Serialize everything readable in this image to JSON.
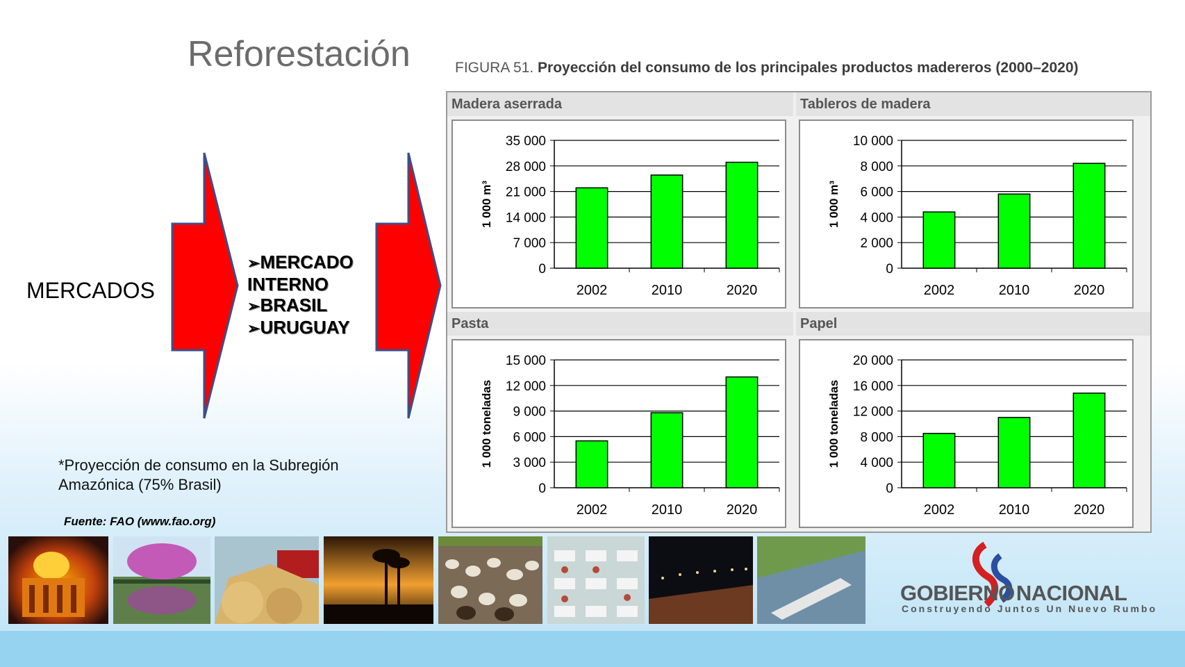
{
  "slide": {
    "title": "Reforestación",
    "left_label": "MERCADOS",
    "bullets": [
      "MERCADO",
      "INTERNO",
      "BRASIL",
      "URUGUAY"
    ],
    "bullet_mark": "➢",
    "note": "*Proyección de consumo en la Subregión Amazónica (75% Brasil)",
    "source": "Fuente: FAO (www.fao.org)",
    "arrow_color": "#ff0000",
    "bar_color": "#00ff00"
  },
  "figure": {
    "label": "FIGURA 51.",
    "title": "Proyección del consumo de los principales productos madereros (2000–2020)"
  },
  "chart_data": [
    {
      "type": "bar",
      "title": "Madera aserrada",
      "ylabel": "1 000 m³",
      "categories": [
        "2002",
        "2010",
        "2020"
      ],
      "values": [
        22000,
        25500,
        29000
      ],
      "ylim": [
        0,
        35000
      ],
      "yticks": [
        0,
        7000,
        14000,
        21000,
        28000,
        35000
      ],
      "ytick_labels": [
        "0",
        "7 000",
        "14 000",
        "21 000",
        "28 000",
        "35 000"
      ],
      "grid": true
    },
    {
      "type": "bar",
      "title": "Tableros de madera",
      "ylabel": "1 000 m³",
      "categories": [
        "2002",
        "2010",
        "2020"
      ],
      "values": [
        4400,
        5800,
        8200
      ],
      "ylim": [
        0,
        10000
      ],
      "yticks": [
        0,
        2000,
        4000,
        6000,
        8000,
        10000
      ],
      "ytick_labels": [
        "0",
        "2 000",
        "4 000",
        "6 000",
        "8 000",
        "10 000"
      ],
      "grid": true
    },
    {
      "type": "bar",
      "title": "Pasta",
      "ylabel": "1 000 toneladas",
      "categories": [
        "2002",
        "2010",
        "2020"
      ],
      "values": [
        5500,
        8800,
        13000
      ],
      "ylim": [
        0,
        15000
      ],
      "yticks": [
        0,
        3000,
        6000,
        9000,
        12000,
        15000
      ],
      "ytick_labels": [
        "0",
        "3 000",
        "6 000",
        "9 000",
        "12 000",
        "15 000"
      ],
      "grid": true
    },
    {
      "type": "bar",
      "title": "Papel",
      "ylabel": "1 000 toneladas",
      "categories": [
        "2002",
        "2010",
        "2020"
      ],
      "values": [
        8500,
        11000,
        14800
      ],
      "ylim": [
        0,
        20000
      ],
      "yticks": [
        0,
        4000,
        8000,
        12000,
        16000,
        20000
      ],
      "ytick_labels": [
        "0",
        "4 000",
        "8 000",
        "12 000",
        "16 000",
        "20 000"
      ],
      "grid": true
    }
  ],
  "footer": {
    "photos": [
      "palace-photo",
      "flowering-tree-photo",
      "soybean-harvest-photo",
      "palm-sunset-photo",
      "cattle-herd-photo",
      "meat-processing-photo",
      "night-port-photo",
      "river-barge-photo"
    ],
    "logo_main_1": "GOBIERNO",
    "logo_main_2": "NACIONAL",
    "logo_sub": "Construyendo Juntos Un Nuevo Rumbo",
    "band_color": "#96d3f1"
  }
}
